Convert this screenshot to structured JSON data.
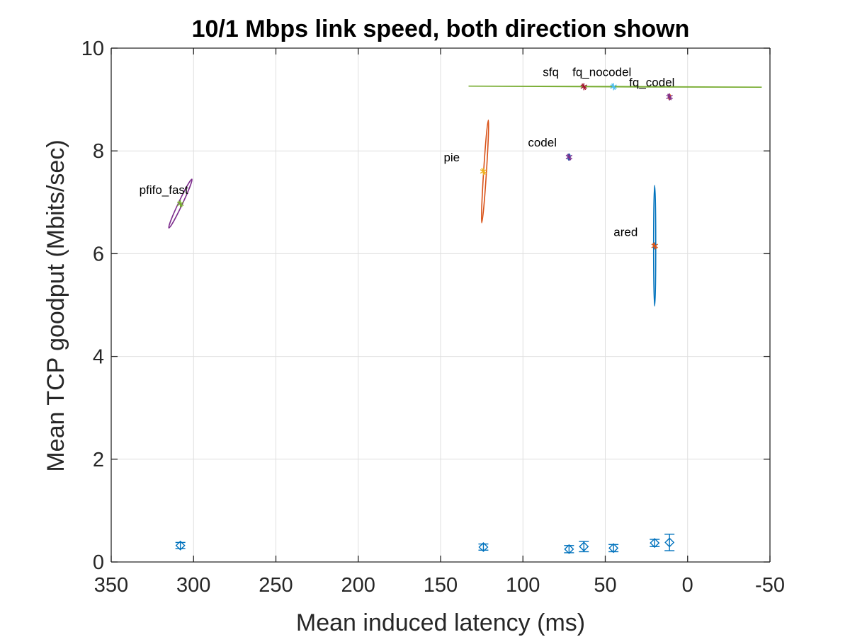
{
  "chart_data": {
    "type": "scatter",
    "title": "10/1 Mbps link speed, both direction shown",
    "xlabel": "Mean induced latency (ms)",
    "ylabel": "Mean TCP goodput (Mbits/sec)",
    "xlim": [
      350,
      -50
    ],
    "ylim": [
      0,
      10
    ],
    "x_reversed": true,
    "xticks": [
      350,
      300,
      250,
      200,
      150,
      100,
      50,
      0,
      -50
    ],
    "yticks": [
      0,
      2,
      4,
      6,
      8,
      10
    ],
    "grid": true,
    "points": [
      {
        "label": "pfifo_fast",
        "x": 308,
        "y": 6.97,
        "color": "#77AC30",
        "ellipse": {
          "color": "#7E2F8E",
          "x1": 315,
          "y1": 6.5,
          "x2": 301,
          "y2": 7.45,
          "minor": 2.8
        }
      },
      {
        "label": "pie",
        "x": 124,
        "y": 7.6,
        "color": "#EDB120",
        "ellipse": {
          "color": "#D95319",
          "x1": 125,
          "y1": 6.6,
          "x2": 121,
          "y2": 8.6,
          "minor": 2.0
        }
      },
      {
        "label": "codel",
        "x": 72,
        "y": 7.88,
        "color": "#7E2F8E",
        "ellipse": {
          "color": "#0072BD",
          "x1": 72,
          "y1": 7.82,
          "x2": 72,
          "y2": 7.94,
          "minor": 1.5
        }
      },
      {
        "label": "sfq",
        "x": 63,
        "y": 9.25,
        "color": "#A2142F",
        "ellipse": {
          "color": "#77AC30",
          "x1": 133,
          "y1": 9.26,
          "x2": -45,
          "y2": 9.24,
          "minor": 0.3
        }
      },
      {
        "label": "fq_nocodel",
        "x": 45,
        "y": 9.25,
        "color": "#4DBEEE"
      },
      {
        "label": "fq_codel",
        "x": 11,
        "y": 9.05,
        "color": "#7E2F8E",
        "ellipse": {
          "color": "#D95319",
          "x1": 11,
          "y1": 9.0,
          "x2": 11,
          "y2": 9.1,
          "minor": 1.5
        }
      },
      {
        "label": "ared",
        "x": 20,
        "y": 6.15,
        "color": "#D95319",
        "ellipse": {
          "color": "#0072BD",
          "x1": 20,
          "y1": 4.98,
          "x2": 20,
          "y2": 7.33,
          "minor": 1.5
        }
      }
    ],
    "upload_points": [
      {
        "x": 308,
        "y": 0.32,
        "err": 0.06
      },
      {
        "x": 124,
        "y": 0.29,
        "err": 0.06
      },
      {
        "x": 72,
        "y": 0.25,
        "err": 0.07
      },
      {
        "x": 63,
        "y": 0.3,
        "err": 0.1
      },
      {
        "x": 45,
        "y": 0.27,
        "err": 0.07
      },
      {
        "x": 20,
        "y": 0.37,
        "err": 0.07
      },
      {
        "x": 11,
        "y": 0.38,
        "err": 0.16
      }
    ],
    "upload_color": "#0072BD"
  }
}
